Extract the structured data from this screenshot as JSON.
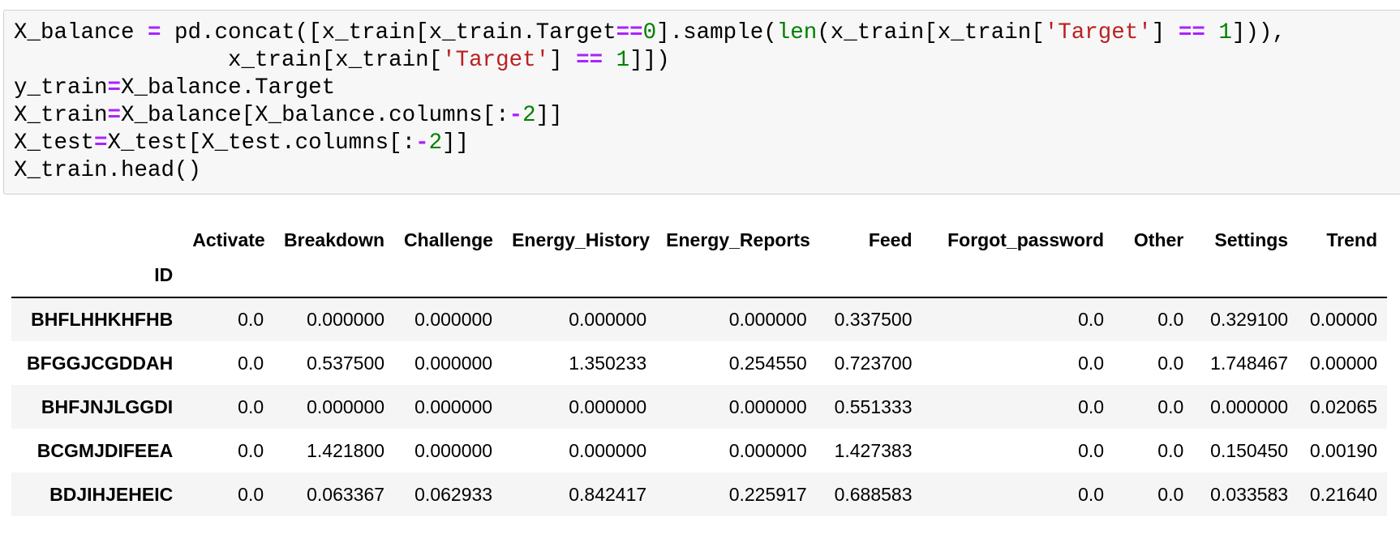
{
  "code_cell": {
    "lines": [
      {
        "tokens": [
          {
            "t": "X_balance ",
            "c": ""
          },
          {
            "t": "=",
            "c": "op"
          },
          {
            "t": " pd.concat([x_train[x_train.Target",
            "c": ""
          },
          {
            "t": "==",
            "c": "op"
          },
          {
            "t": "0",
            "c": "num"
          },
          {
            "t": "].sample(",
            "c": ""
          },
          {
            "t": "len",
            "c": "builtin"
          },
          {
            "t": "(x_train[x_train[",
            "c": ""
          },
          {
            "t": "'Target'",
            "c": "str"
          },
          {
            "t": "] ",
            "c": ""
          },
          {
            "t": "==",
            "c": "op"
          },
          {
            "t": " ",
            "c": ""
          },
          {
            "t": "1",
            "c": "num"
          },
          {
            "t": "])),",
            "c": ""
          }
        ]
      },
      {
        "tokens": [
          {
            "t": "                x_train[x_train[",
            "c": ""
          },
          {
            "t": "'Target'",
            "c": "str"
          },
          {
            "t": "] ",
            "c": ""
          },
          {
            "t": "==",
            "c": "op"
          },
          {
            "t": " ",
            "c": ""
          },
          {
            "t": "1",
            "c": "num"
          },
          {
            "t": "]])",
            "c": ""
          }
        ]
      },
      {
        "tokens": [
          {
            "t": "y_train",
            "c": ""
          },
          {
            "t": "=",
            "c": "op"
          },
          {
            "t": "X_balance.Target",
            "c": ""
          }
        ]
      },
      {
        "tokens": [
          {
            "t": "X_train",
            "c": ""
          },
          {
            "t": "=",
            "c": "op"
          },
          {
            "t": "X_balance[X_balance.columns[:",
            "c": ""
          },
          {
            "t": "-",
            "c": "op"
          },
          {
            "t": "2",
            "c": "num"
          },
          {
            "t": "]]",
            "c": ""
          }
        ]
      },
      {
        "tokens": [
          {
            "t": "X_test",
            "c": ""
          },
          {
            "t": "=",
            "c": "op"
          },
          {
            "t": "X_test[X_test.columns[:",
            "c": ""
          },
          {
            "t": "-",
            "c": "op"
          },
          {
            "t": "2",
            "c": "num"
          },
          {
            "t": "]]",
            "c": ""
          }
        ]
      },
      {
        "tokens": [
          {
            "t": "X_train.head()",
            "c": ""
          }
        ]
      }
    ]
  },
  "table": {
    "index_name": "ID",
    "columns": [
      "Activate",
      "Breakdown",
      "Challenge",
      "Energy_History",
      "Energy_Reports",
      "Feed",
      "Forgot_password",
      "Other",
      "Settings",
      "Trend"
    ],
    "rows": [
      {
        "id": "BHFLHHKHFHB",
        "values": [
          "0.0",
          "0.000000",
          "0.000000",
          "0.000000",
          "0.000000",
          "0.337500",
          "0.0",
          "0.0",
          "0.329100",
          "0.00000"
        ]
      },
      {
        "id": "BFGGJCGDDAH",
        "values": [
          "0.0",
          "0.537500",
          "0.000000",
          "1.350233",
          "0.254550",
          "0.723700",
          "0.0",
          "0.0",
          "1.748467",
          "0.00000"
        ]
      },
      {
        "id": "BHFJNJLGGDI",
        "values": [
          "0.0",
          "0.000000",
          "0.000000",
          "0.000000",
          "0.000000",
          "0.551333",
          "0.0",
          "0.0",
          "0.000000",
          "0.02065"
        ]
      },
      {
        "id": "BCGMJDIFEEA",
        "values": [
          "0.0",
          "1.421800",
          "0.000000",
          "0.000000",
          "0.000000",
          "1.427383",
          "0.0",
          "0.0",
          "0.150450",
          "0.00190"
        ]
      },
      {
        "id": "BDJIHJEHEIC",
        "values": [
          "0.0",
          "0.063367",
          "0.062933",
          "0.842417",
          "0.225917",
          "0.688583",
          "0.0",
          "0.0",
          "0.033583",
          "0.21640"
        ]
      }
    ]
  }
}
